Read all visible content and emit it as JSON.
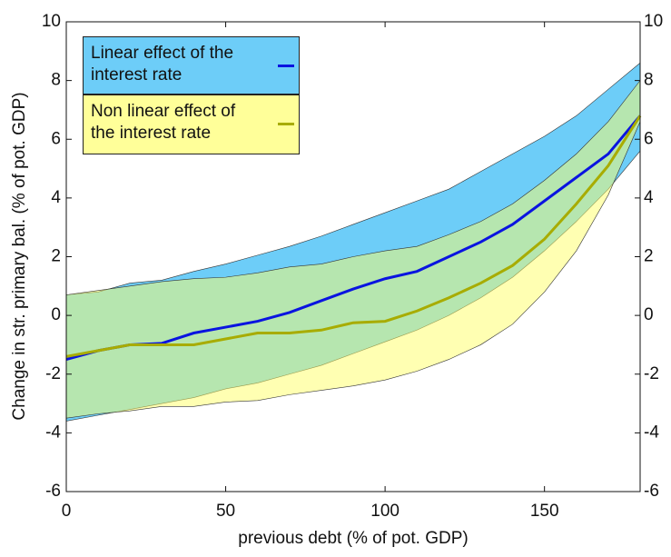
{
  "chart_data": {
    "type": "band-line",
    "xlabel": "previous debt (% of pot. GDP)",
    "ylabel": "Change in str. primary bal. (% of pot. GDP)",
    "x": [
      0,
      10,
      20,
      30,
      40,
      50,
      60,
      70,
      80,
      90,
      100,
      110,
      120,
      130,
      140,
      150,
      160,
      170,
      180
    ],
    "xlim": [
      0,
      180
    ],
    "xticks": [
      0,
      50,
      100,
      150
    ],
    "ylim": [
      -6,
      10
    ],
    "yticks": [
      -6,
      -4,
      -2,
      0,
      2,
      4,
      6,
      8,
      10
    ],
    "y2lim": [
      -6,
      10
    ],
    "y2ticks": [
      -6,
      -4,
      -2,
      0,
      2,
      4,
      6,
      8,
      10
    ],
    "legend": "upper-left",
    "series": [
      {
        "name": "Linear effect of the interest rate",
        "color": "#0a14e0",
        "band_color": "#6dcdf8",
        "values": [
          -1.5,
          -1.2,
          -1.0,
          -0.95,
          -0.6,
          -0.4,
          -0.2,
          0.1,
          0.5,
          0.9,
          1.25,
          1.5,
          2.0,
          2.5,
          3.1,
          3.9,
          4.7,
          5.5,
          6.8
        ],
        "upper": [
          0.7,
          0.8,
          1.1,
          1.2,
          1.5,
          1.75,
          2.05,
          2.35,
          2.7,
          3.1,
          3.5,
          3.9,
          4.3,
          4.9,
          5.5,
          6.1,
          6.8,
          7.7,
          8.6
        ],
        "lower": [
          -3.6,
          -3.4,
          -3.2,
          -3.0,
          -2.8,
          -2.5,
          -2.3,
          -2.0,
          -1.7,
          -1.3,
          -0.9,
          -0.5,
          0.0,
          0.6,
          1.3,
          2.2,
          3.2,
          4.3,
          5.6
        ]
      },
      {
        "name": "Non linear effect of the interest rate",
        "color": "#a8ac00",
        "band_color": "#ffff66",
        "values": [
          -1.4,
          -1.2,
          -1.0,
          -1.0,
          -1.0,
          -0.8,
          -0.6,
          -0.6,
          -0.5,
          -0.25,
          -0.2,
          0.15,
          0.6,
          1.1,
          1.7,
          2.6,
          3.8,
          5.1,
          6.8
        ],
        "upper": [
          0.7,
          0.85,
          1.0,
          1.15,
          1.25,
          1.3,
          1.45,
          1.65,
          1.75,
          2.0,
          2.2,
          2.35,
          2.75,
          3.2,
          3.8,
          4.6,
          5.5,
          6.6,
          8.0
        ],
        "lower": [
          -3.5,
          -3.35,
          -3.25,
          -3.1,
          -3.1,
          -2.95,
          -2.9,
          -2.7,
          -2.55,
          -2.4,
          -2.2,
          -1.9,
          -1.5,
          -1.0,
          -0.3,
          0.8,
          2.2,
          4.1,
          6.6
        ]
      }
    ]
  }
}
